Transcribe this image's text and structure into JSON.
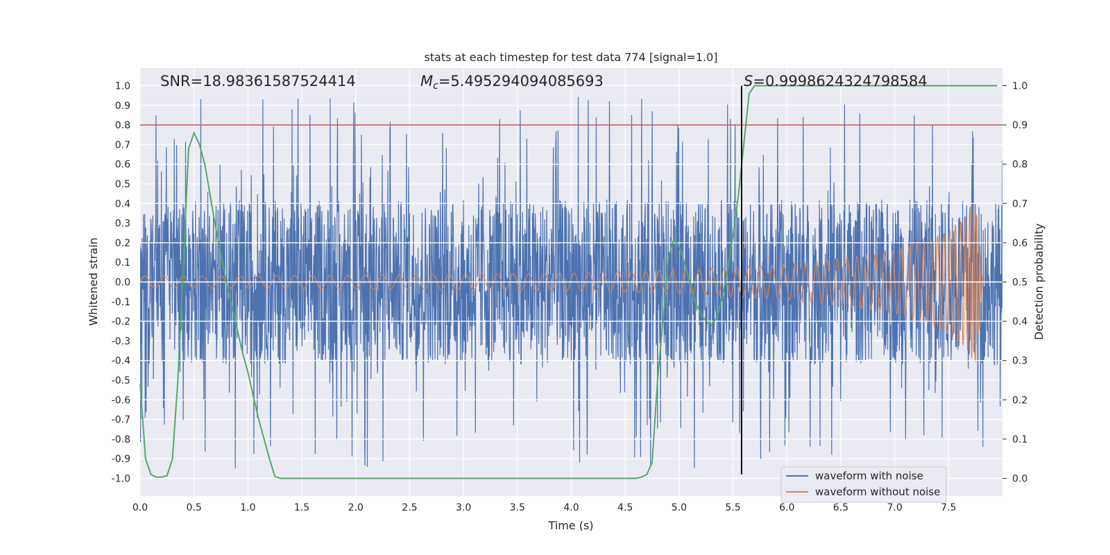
{
  "chart_data": {
    "type": "line",
    "title": "stats at each timestep for test data 774 [signal=1.0]",
    "xlabel": "Time (s)",
    "ylabel": "Whitened strain",
    "y2label": "Detection probability",
    "xlim": [
      0.0,
      8.0
    ],
    "ylim": [
      -1.09,
      1.09
    ],
    "y2lim": [
      -0.045,
      1.045
    ],
    "x_ticks": [
      "0.0",
      "0.5",
      "1.0",
      "1.5",
      "2.0",
      "2.5",
      "3.0",
      "3.5",
      "4.0",
      "4.5",
      "5.0",
      "5.5",
      "6.0",
      "6.5",
      "7.0",
      "7.5"
    ],
    "y_ticks": [
      "1.0",
      "0.9",
      "0.8",
      "0.7",
      "0.6",
      "0.5",
      "0.4",
      "0.3",
      "0.2",
      "0.1",
      "0.0",
      "-0.1",
      "-0.2",
      "-0.3",
      "-0.4",
      "-0.5",
      "-0.6",
      "-0.7",
      "-0.8",
      "-0.9",
      "-1.0"
    ],
    "y2_ticks": [
      "1.0",
      "0.9",
      "0.8",
      "0.7",
      "0.6",
      "0.5",
      "0.4",
      "0.3",
      "0.2",
      "0.1",
      "0.0"
    ],
    "annotations": {
      "snr": "SNR=18.98361587524414",
      "mc_symbol": "M",
      "mc_sub": "c",
      "mc_value": "=5.495294094085693",
      "s_symbol": "S",
      "s_value": "=0.9998624324798584"
    },
    "threshold": {
      "value": 0.9,
      "axis": "y2",
      "color": "#c44e52"
    },
    "merger_time": 5.58,
    "merger_ylim": [
      -0.98,
      1.0
    ],
    "series": [
      {
        "name": "waveform with noise",
        "color": "#4c72b0",
        "axis": "y",
        "description": "noisy whitened strain, roughly +/-0.4 band with spikes to about +/-0.95",
        "envelope_core": 0.42,
        "spike_max": 0.95
      },
      {
        "name": "waveform without noise",
        "color": "#dd8452",
        "axis": "y",
        "description": "chirp waveform growing in amplitude until merger near 7.8 s",
        "amplitude_points": [
          [
            0.0,
            0.03
          ],
          [
            1.0,
            0.032
          ],
          [
            2.0,
            0.035
          ],
          [
            3.0,
            0.04
          ],
          [
            4.0,
            0.045
          ],
          [
            5.0,
            0.06
          ],
          [
            5.5,
            0.075
          ],
          [
            6.0,
            0.09
          ],
          [
            6.5,
            0.12
          ],
          [
            7.0,
            0.16
          ],
          [
            7.3,
            0.21
          ],
          [
            7.5,
            0.26
          ],
          [
            7.65,
            0.33
          ],
          [
            7.75,
            0.42
          ],
          [
            7.82,
            0.0
          ],
          [
            8.0,
            0.0
          ]
        ]
      },
      {
        "name": "detection probability",
        "color": "#55a868",
        "axis": "y2",
        "x": [
          0.0,
          0.05,
          0.1,
          0.15,
          0.2,
          0.25,
          0.3,
          0.35,
          0.4,
          0.45,
          0.5,
          0.55,
          0.6,
          0.65,
          0.7,
          0.75,
          0.8,
          0.85,
          0.9,
          0.95,
          1.0,
          1.05,
          1.1,
          1.15,
          1.2,
          1.25,
          1.3,
          1.4,
          1.5,
          2.0,
          2.5,
          3.0,
          3.5,
          4.0,
          4.5,
          4.6,
          4.65,
          4.7,
          4.75,
          4.8,
          4.85,
          4.9,
          4.95,
          5.0,
          5.05,
          5.1,
          5.15,
          5.2,
          5.25,
          5.3,
          5.35,
          5.4,
          5.45,
          5.5,
          5.55,
          5.6,
          5.65,
          5.7,
          5.75,
          5.8,
          6.0,
          7.0,
          7.95
        ],
        "values": [
          0.24,
          0.05,
          0.01,
          0.003,
          0.003,
          0.007,
          0.05,
          0.25,
          0.54,
          0.84,
          0.88,
          0.85,
          0.8,
          0.72,
          0.64,
          0.57,
          0.5,
          0.44,
          0.38,
          0.32,
          0.27,
          0.21,
          0.15,
          0.1,
          0.05,
          0.005,
          0.0,
          0.0,
          0.0,
          0.0,
          0.0,
          0.0,
          0.0,
          0.0,
          0.0,
          0.0,
          0.003,
          0.01,
          0.04,
          0.25,
          0.4,
          0.56,
          0.61,
          0.59,
          0.55,
          0.5,
          0.45,
          0.42,
          0.4,
          0.39,
          0.41,
          0.46,
          0.53,
          0.62,
          0.72,
          0.85,
          0.98,
          1.0,
          1.0,
          1.0,
          1.0,
          1.0,
          1.0
        ]
      }
    ],
    "legend": {
      "location": "lower-right",
      "entries": [
        {
          "label": "waveform with noise",
          "color": "#4c72b0"
        },
        {
          "label": "waveform without noise",
          "color": "#dd8452"
        }
      ]
    }
  }
}
